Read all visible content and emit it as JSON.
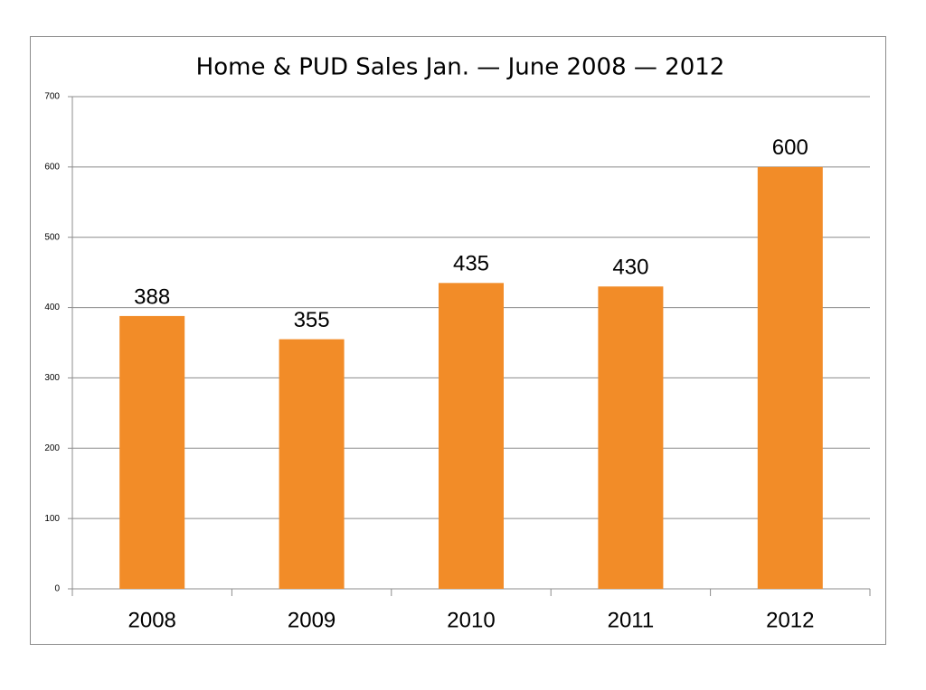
{
  "chart_data": {
    "type": "bar",
    "title": "Home & PUD Sales Jan. — June 2008 — 2012",
    "categories": [
      "2008",
      "2009",
      "2010",
      "2011",
      "2012"
    ],
    "values": [
      388,
      355,
      435,
      430,
      600
    ],
    "color": "#f28c28",
    "ylim": [
      0,
      700
    ],
    "yticks": [
      0,
      100,
      200,
      300,
      400,
      500,
      600,
      700
    ],
    "grid": true
  }
}
